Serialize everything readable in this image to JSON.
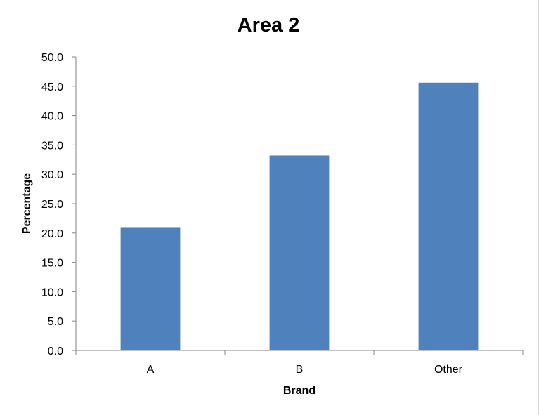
{
  "chart_data": {
    "type": "bar",
    "title": "Area 2",
    "xlabel": "Brand",
    "ylabel": "Percentage",
    "categories": [
      "A",
      "B",
      "Other"
    ],
    "values": [
      21.0,
      33.2,
      45.6
    ],
    "ylim": [
      0,
      50
    ],
    "ytick_step": 5,
    "ytick_labels": [
      "0.0",
      "5.0",
      "10.0",
      "15.0",
      "20.0",
      "25.0",
      "30.0",
      "35.0",
      "40.0",
      "45.0",
      "50.0"
    ],
    "grid": false,
    "legend": "none",
    "bar_color": "#4F81BD",
    "axis_color": "#868686"
  }
}
